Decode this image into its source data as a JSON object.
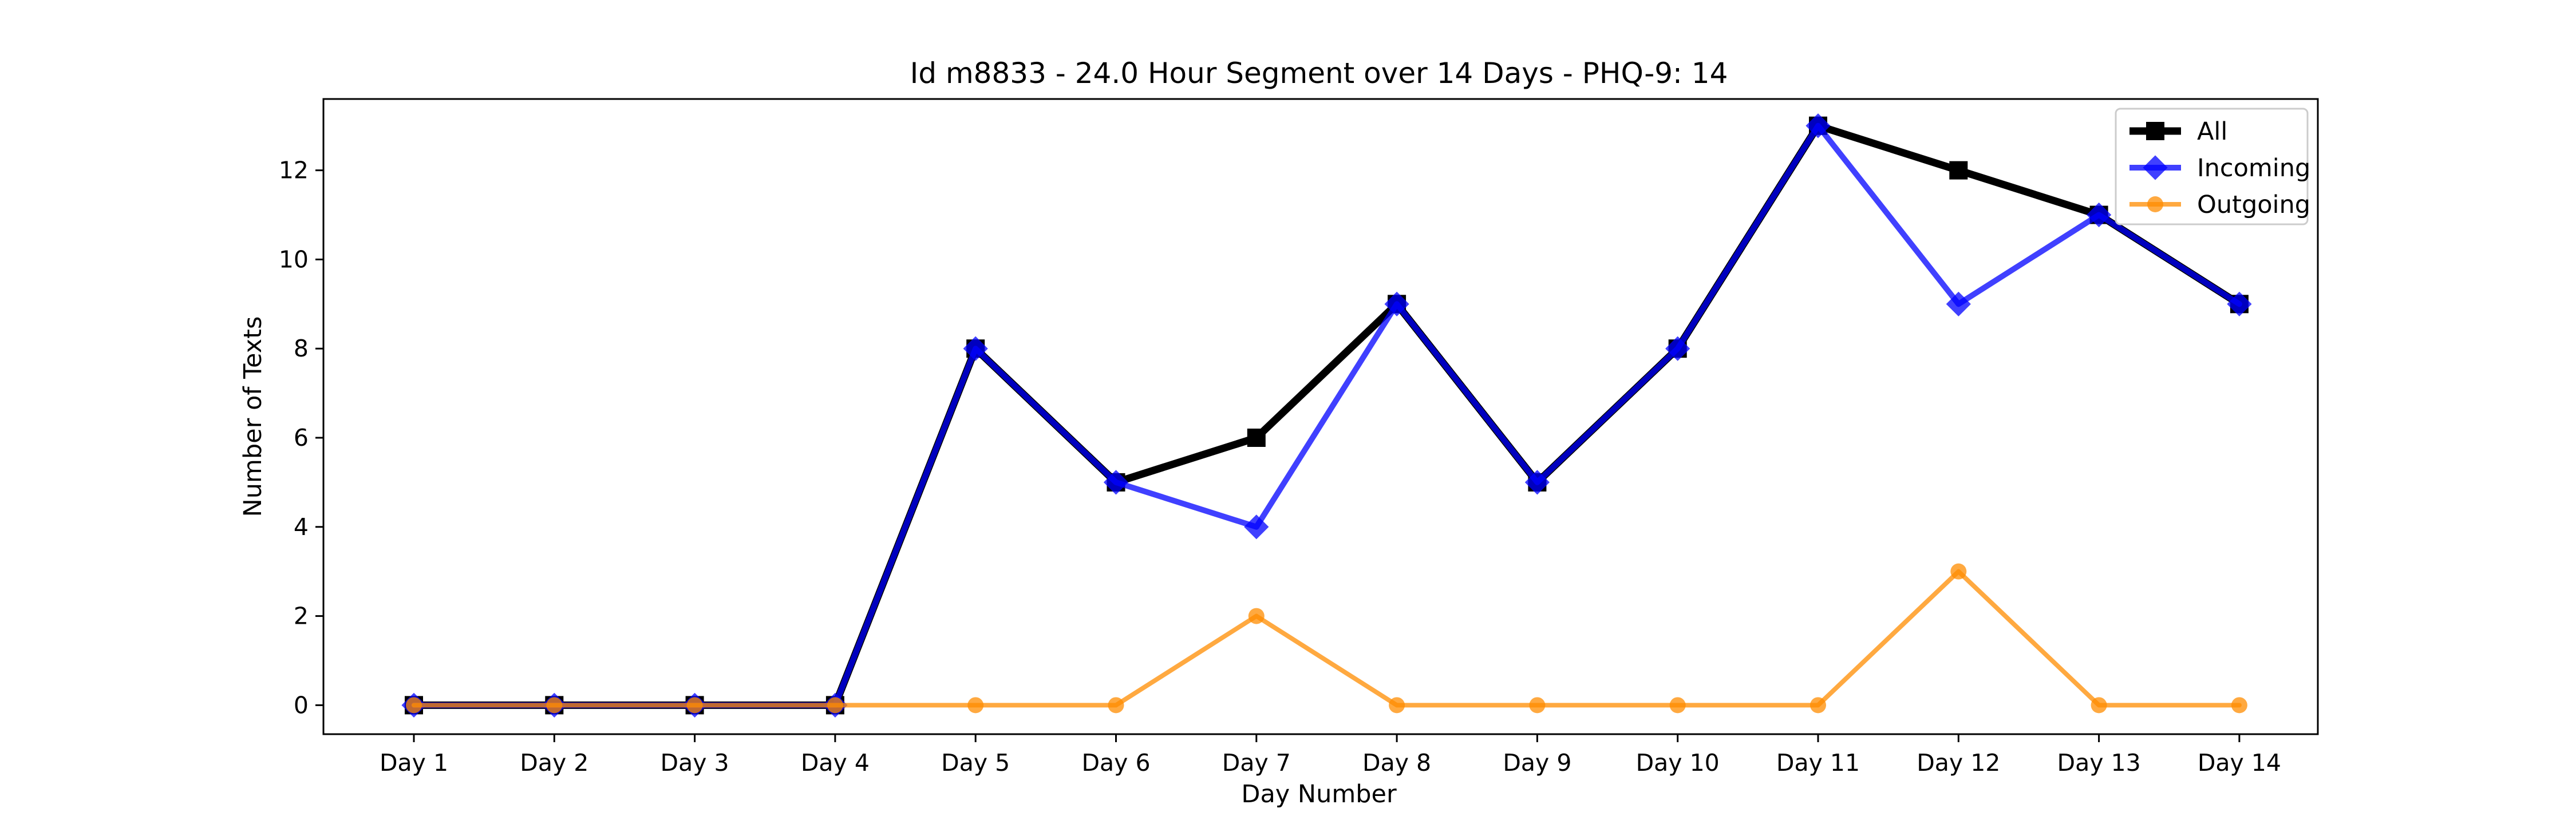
{
  "chart_data": {
    "type": "line",
    "title": "Id m8833 - 24.0 Hour Segment over 14 Days - PHQ-9: 14",
    "xlabel": "Day Number",
    "ylabel": "Number of Texts",
    "categories": [
      "Day 1",
      "Day 2",
      "Day 3",
      "Day 4",
      "Day 5",
      "Day 6",
      "Day 7",
      "Day 8",
      "Day 9",
      "Day 10",
      "Day 11",
      "Day 12",
      "Day 13",
      "Day 14"
    ],
    "yticks": [
      0,
      2,
      4,
      6,
      8,
      10,
      12
    ],
    "ylim": [
      -0.65,
      13.6
    ],
    "grid": false,
    "legend_position": "top-right",
    "series": [
      {
        "name": "All",
        "color": "#000000",
        "marker": "square",
        "values": [
          0,
          0,
          0,
          0,
          8,
          5,
          6,
          9,
          5,
          8,
          13,
          12,
          11,
          9
        ]
      },
      {
        "name": "Incoming",
        "color": "#0000ff",
        "marker": "diamond",
        "values": [
          0,
          0,
          0,
          0,
          8,
          5,
          4,
          9,
          5,
          8,
          13,
          9,
          11,
          9
        ]
      },
      {
        "name": "Outgoing",
        "color": "#ff8c00",
        "marker": "circle",
        "values": [
          0,
          0,
          0,
          0,
          0,
          0,
          2,
          0,
          0,
          0,
          0,
          3,
          0,
          0
        ]
      }
    ]
  }
}
